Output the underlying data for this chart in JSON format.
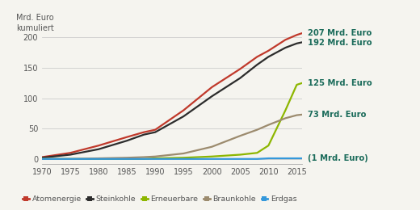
{
  "title_ylabel": "Mrd. Euro\nkumuliert",
  "years": [
    1970,
    1975,
    1980,
    1985,
    1988,
    1990,
    1995,
    2000,
    2005,
    2008,
    2010,
    2013,
    2015,
    2016
  ],
  "atomenergie": [
    3,
    10,
    22,
    36,
    44,
    48,
    80,
    118,
    148,
    168,
    178,
    196,
    204,
    207
  ],
  "steinkohle": [
    2,
    7,
    16,
    30,
    40,
    44,
    70,
    103,
    133,
    155,
    168,
    183,
    190,
    192
  ],
  "erneuerbare": [
    0,
    0,
    0,
    0,
    0,
    1,
    2,
    4,
    7,
    10,
    22,
    80,
    122,
    125
  ],
  "braunkohle": [
    0,
    0,
    1,
    2,
    3,
    4,
    9,
    20,
    38,
    48,
    56,
    67,
    72,
    73
  ],
  "erdgas": [
    0,
    0,
    0,
    0,
    0,
    0,
    0,
    0,
    0,
    0,
    1,
    1,
    1,
    1
  ],
  "color_atom": "#c0392b",
  "color_stein": "#2c2c2c",
  "color_erneu": "#8db600",
  "color_braun": "#9c8b6e",
  "color_erdgas": "#3498db",
  "color_labels": "#1a6b5a",
  "xlim": [
    1970,
    2016
  ],
  "ylim": [
    -8,
    220
  ],
  "yticks": [
    0,
    50,
    100,
    150,
    200
  ],
  "xticks": [
    1970,
    1975,
    1980,
    1985,
    1990,
    1995,
    2000,
    2005,
    2010,
    2015
  ],
  "end_labels": [
    {
      "text": "207 Mrd. Euro",
      "y": 207,
      "series": "atom"
    },
    {
      "text": "192 Mrd. Euro",
      "y": 191,
      "series": "stein"
    },
    {
      "text": "125 Mrd. Euro",
      "y": 125,
      "series": "erneu"
    },
    {
      "text": "73 Mrd. Euro",
      "y": 73,
      "series": "braun"
    },
    {
      "text": "(1 Mrd. Euro)",
      "y": 1,
      "series": "erdgas"
    }
  ],
  "legend_items": [
    {
      "label": "Atomenergie",
      "color": "#c0392b"
    },
    {
      "label": "Steinkohle",
      "color": "#2c2c2c"
    },
    {
      "label": "Erneuerbare",
      "color": "#8db600"
    },
    {
      "label": "Braunkohle",
      "color": "#9c8b6e"
    },
    {
      "label": "Erdgas",
      "color": "#3498db"
    }
  ],
  "bg_color": "#f5f4ef"
}
